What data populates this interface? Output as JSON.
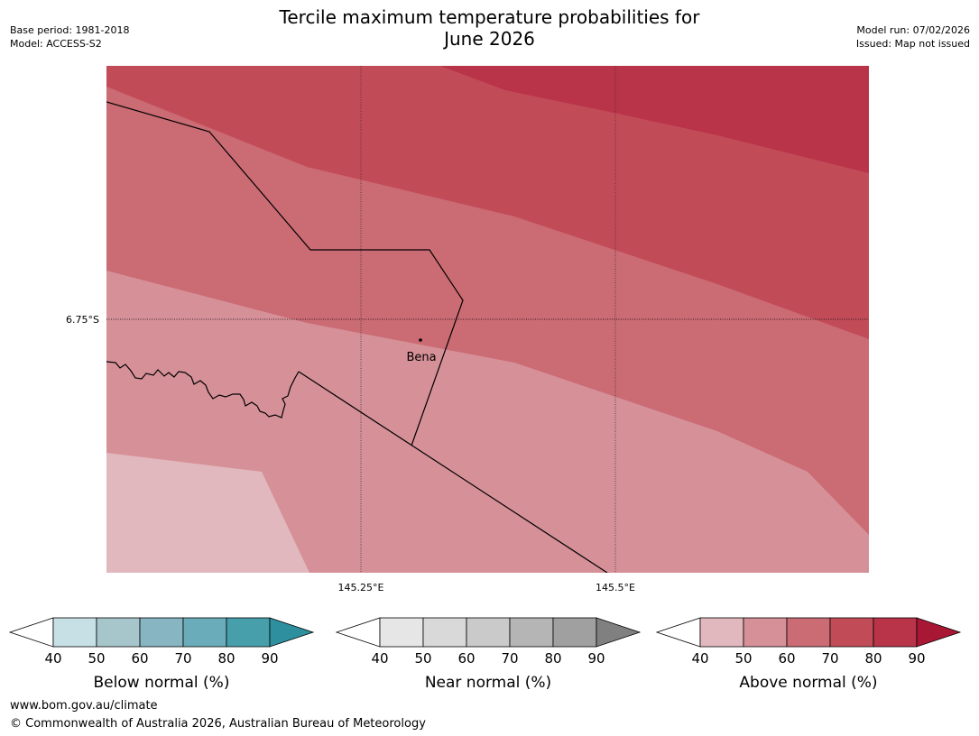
{
  "header": {
    "title_line1": "Tercile maximum temperature probabilities for",
    "title_line2": "June 2026",
    "base_period": "Base period: 1981-2018",
    "model": "Model: ACCESS-S2",
    "model_run": "Model run: 07/02/2026",
    "issued": "Issued: Map not issued"
  },
  "map": {
    "place_label": "Bena",
    "lat_label": "6.75°S",
    "lon_labels": [
      "145.25°E",
      "145.5°E"
    ],
    "colors": {
      "above_40_50": "#e1b8bd",
      "above_50_60": "#d69098",
      "above_60_70": "#cb6b74",
      "above_70_80": "#c14c58",
      "above_80_90": "#b93349"
    }
  },
  "legends": [
    {
      "name": "below",
      "title": "Below normal (%)",
      "ticks": [
        "40",
        "50",
        "60",
        "70",
        "80",
        "90"
      ],
      "colors": [
        "#c7e0e6",
        "#a6c6cc",
        "#87b5c1",
        "#6aacb9",
        "#479fab",
        "#2e8f9e"
      ]
    },
    {
      "name": "near",
      "title": "Near normal (%)",
      "ticks": [
        "40",
        "50",
        "60",
        "70",
        "80",
        "90"
      ],
      "colors": [
        "#e6e6e6",
        "#d9d9d9",
        "#cacaca",
        "#b5b5b5",
        "#a0a0a0",
        "#808080"
      ]
    },
    {
      "name": "above",
      "title": "Above normal (%)",
      "ticks": [
        "40",
        "50",
        "60",
        "70",
        "80",
        "90"
      ],
      "colors": [
        "#e1b8bd",
        "#d69098",
        "#cb6b74",
        "#c14c58",
        "#b93349",
        "#a81834"
      ]
    }
  ],
  "footer": {
    "url": "www.bom.gov.au/climate",
    "copyright": "© Commonwealth of Australia 2026, Australian Bureau of Meteorology"
  }
}
